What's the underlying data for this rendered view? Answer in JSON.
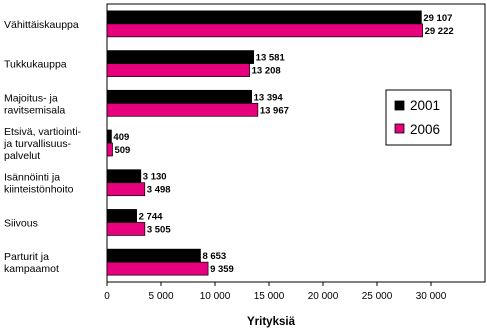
{
  "chart_data": {
    "type": "bar",
    "orientation": "horizontal",
    "categories": [
      [
        "Vähittäiskauppa"
      ],
      [
        "Tukkukauppa"
      ],
      [
        "Majoitus- ja",
        "ravitsemisala"
      ],
      [
        "Etsivä, vartiointi-",
        "ja turvallisuus-",
        "palvelut"
      ],
      [
        "Isännöinti ja",
        "kiinteistönhoito"
      ],
      [
        "Siivous"
      ],
      [
        "Parturit ja",
        "kampaamot"
      ]
    ],
    "series": [
      {
        "name": "2001",
        "color": "#000000",
        "values": [
          29107,
          13581,
          13394,
          409,
          3130,
          2744,
          8653
        ],
        "labels": [
          "29 107",
          "13 581",
          "13 394",
          "409",
          "3 130",
          "2 744",
          "8 653"
        ]
      },
      {
        "name": "2006",
        "color": "#e6007e",
        "values": [
          29222,
          13208,
          13967,
          509,
          3498,
          3505,
          9359
        ],
        "labels": [
          "29 222",
          "13 208",
          "13 967",
          "509",
          "3 498",
          "3 505",
          "9 359"
        ]
      }
    ],
    "xlim": [
      0,
      35000
    ],
    "xticks": [
      0,
      5000,
      10000,
      15000,
      20000,
      25000,
      30000
    ],
    "xtick_labels": [
      "0",
      "5 000",
      "10 000",
      "15 000",
      "20 000",
      "25 000",
      "30 000"
    ],
    "xlabel": "Yrityksiä",
    "legend_position": "right"
  }
}
